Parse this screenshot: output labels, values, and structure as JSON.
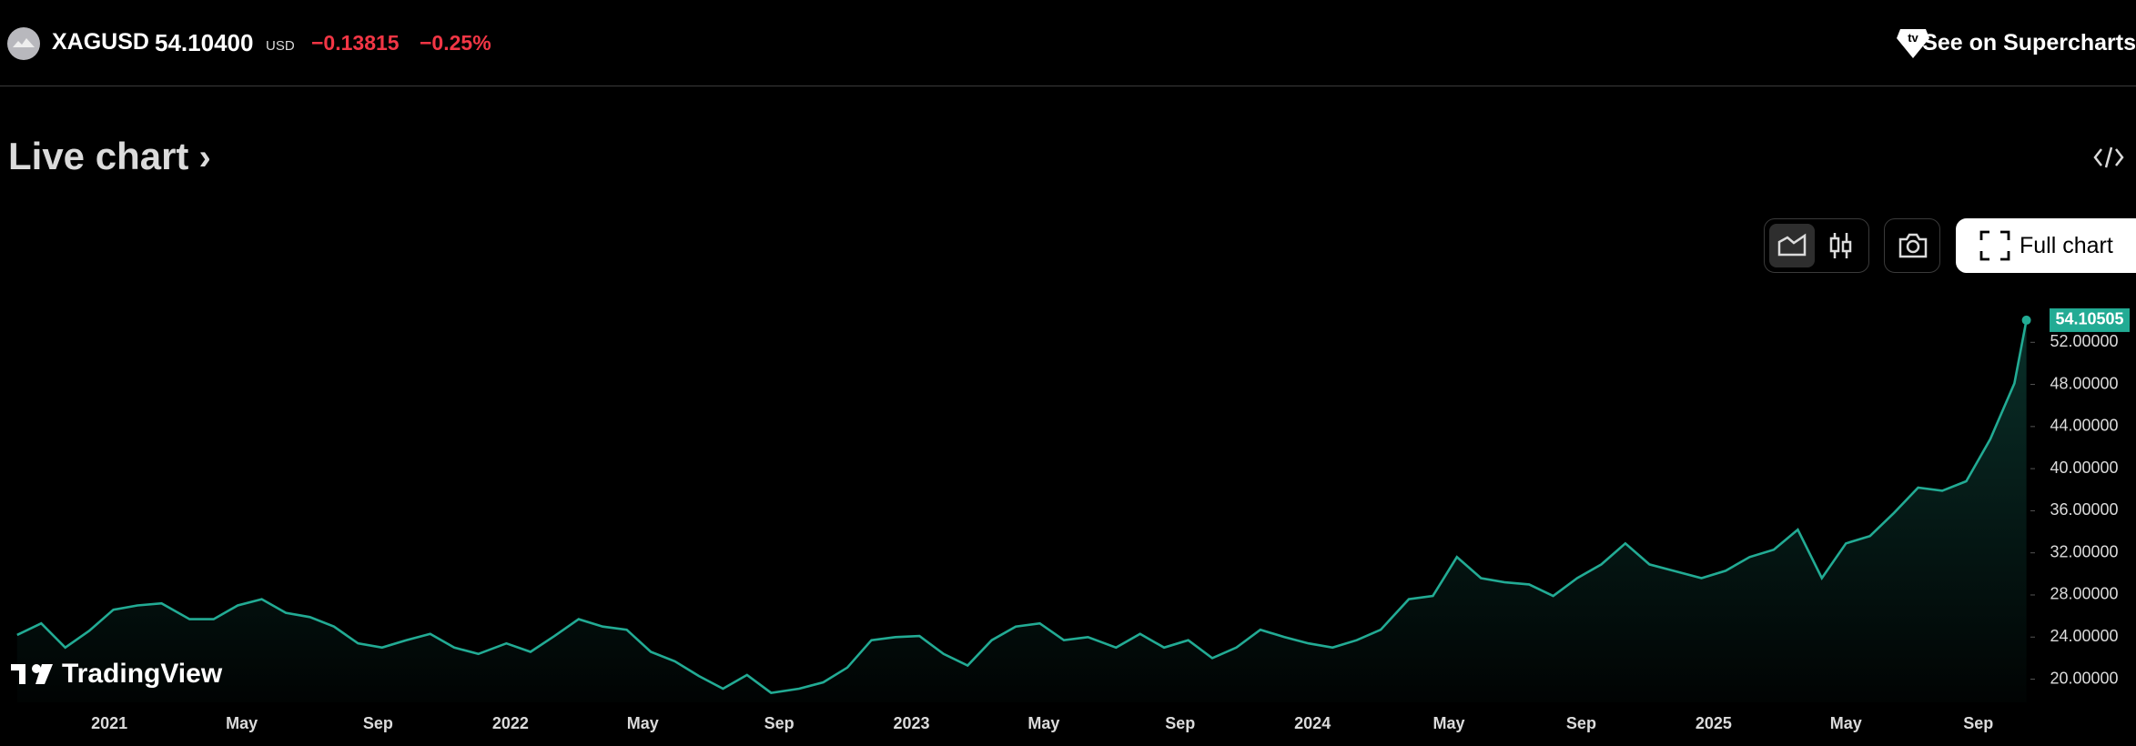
{
  "header": {
    "symbol": "XAGUSD",
    "price": "54.10400",
    "currency": "USD",
    "change": "−0.13815",
    "change_percent": "−0.25%",
    "link": "See on Supercharts"
  },
  "section_title": "Live chart",
  "toolbar": {
    "full_chart": "Full chart"
  },
  "watermark": "TradingView",
  "chart_data": {
    "type": "area",
    "color": "#22ab94",
    "x": [
      2020.77,
      2020.83,
      2020.89,
      2020.95,
      2021.01,
      2021.07,
      2021.13,
      2021.2,
      2021.26,
      2021.32,
      2021.38,
      2021.44,
      2021.5,
      2021.56,
      2021.62,
      2021.68,
      2021.74,
      2021.8,
      2021.86,
      2021.92,
      2021.99,
      2022.05,
      2022.11,
      2022.17,
      2022.23,
      2022.29,
      2022.35,
      2022.41,
      2022.47,
      2022.53,
      2022.59,
      2022.65,
      2022.72,
      2022.78,
      2022.84,
      2022.9,
      2022.96,
      2023.02,
      2023.08,
      2023.14,
      2023.2,
      2023.26,
      2023.32,
      2023.38,
      2023.44,
      2023.51,
      2023.57,
      2023.63,
      2023.69,
      2023.75,
      2023.81,
      2023.87,
      2023.93,
      2023.99,
      2024.05,
      2024.11,
      2024.17,
      2024.24,
      2024.3,
      2024.36,
      2024.42,
      2024.48,
      2024.54,
      2024.6,
      2024.66,
      2024.72,
      2024.78,
      2024.84,
      2024.9,
      2024.97,
      2025.03,
      2025.09,
      2025.15,
      2025.21,
      2025.27,
      2025.33,
      2025.39,
      2025.45,
      2025.51,
      2025.57,
      2025.63,
      2025.69,
      2025.75,
      2025.78
    ],
    "values": [
      24.2,
      25.3,
      23.0,
      24.6,
      26.6,
      27.0,
      27.2,
      25.7,
      25.7,
      27.0,
      27.6,
      26.3,
      25.9,
      25.0,
      23.4,
      23.0,
      23.7,
      24.3,
      23.0,
      22.4,
      23.4,
      22.6,
      24.1,
      25.7,
      25.0,
      24.7,
      22.6,
      21.7,
      20.3,
      19.1,
      20.4,
      18.7,
      19.1,
      19.7,
      21.1,
      23.7,
      24.0,
      24.1,
      22.4,
      21.3,
      23.7,
      25.0,
      25.3,
      23.7,
      24.0,
      23.0,
      24.3,
      23.0,
      23.7,
      22.0,
      23.0,
      24.7,
      24.0,
      23.4,
      23.0,
      23.7,
      24.7,
      27.6,
      27.9,
      31.6,
      29.6,
      29.2,
      29.0,
      27.9,
      29.6,
      30.9,
      32.9,
      30.9,
      30.3,
      29.6,
      30.3,
      31.6,
      32.3,
      34.2,
      29.6,
      32.9,
      33.6,
      35.8,
      38.2,
      37.9,
      38.8,
      42.8,
      48.1,
      54.10505
    ],
    "xlim": [
      2020.75,
      2025.79
    ],
    "ylim": [
      17.8,
      56
    ],
    "xticks": [
      2021,
      {
        "value": 2021.33,
        "label": "May"
      },
      {
        "value": 2021.67,
        "label": "Sep"
      },
      2022,
      {
        "value": 2022.33,
        "label": "May"
      },
      {
        "value": 2022.67,
        "label": "Sep"
      },
      2023,
      {
        "value": 2023.33,
        "label": "May"
      },
      {
        "value": 2023.67,
        "label": "Sep"
      },
      2024,
      {
        "value": 2024.34,
        "label": "May"
      },
      {
        "value": 2024.67,
        "label": "Sep"
      },
      2025,
      {
        "value": 2025.33,
        "label": "May"
      },
      {
        "value": 2025.66,
        "label": "Sep"
      }
    ],
    "yticks": [
      {
        "value": 20,
        "label": "20.00000"
      },
      {
        "value": 24,
        "label": "24.00000"
      },
      {
        "value": 28,
        "label": "28.00000"
      },
      {
        "value": 32,
        "label": "32.00000"
      },
      {
        "value": 36,
        "label": "36.00000"
      },
      {
        "value": 40,
        "label": "40.00000"
      },
      {
        "value": 44,
        "label": "44.00000"
      },
      {
        "value": 48,
        "label": "48.00000"
      },
      {
        "value": 52,
        "label": "52.00000"
      }
    ]
  }
}
